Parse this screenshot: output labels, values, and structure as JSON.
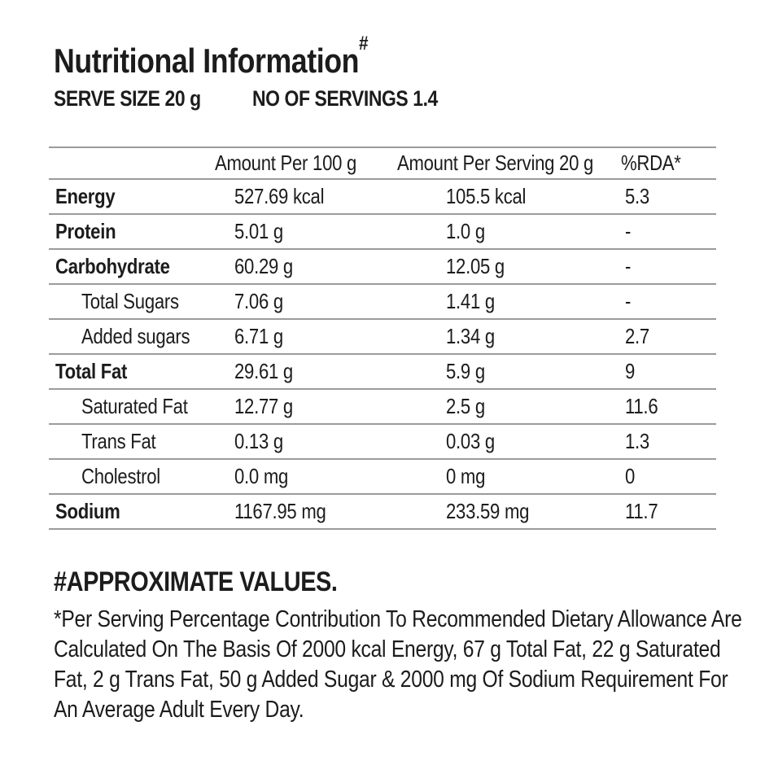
{
  "title": {
    "text": "Nutritional Information",
    "superscript": "#"
  },
  "serving_info": {
    "serve_size_label": "SERVE SIZE 20 g",
    "servings_label": "NO OF SERVINGS 1.4"
  },
  "table": {
    "columns": [
      "",
      "Amount Per 100 g",
      "Amount Per Serving 20 g",
      "%RDA*"
    ],
    "rows": [
      {
        "nutrient": "Energy",
        "per_100g": "527.69 kcal",
        "per_serving": "105.5 kcal",
        "rda": "5.3",
        "emphasis": true,
        "sub": false
      },
      {
        "nutrient": "Protein",
        "per_100g": "5.01 g",
        "per_serving": "1.0 g",
        "rda": "-",
        "emphasis": true,
        "sub": false
      },
      {
        "nutrient": "Carbohydrate",
        "per_100g": "60.29 g",
        "per_serving": "12.05 g",
        "rda": "-",
        "emphasis": true,
        "sub": false
      },
      {
        "nutrient": "Total Sugars",
        "per_100g": "7.06 g",
        "per_serving": "1.41 g",
        "rda": "-",
        "emphasis": false,
        "sub": true
      },
      {
        "nutrient": "Added sugars",
        "per_100g": "6.71 g",
        "per_serving": "1.34 g",
        "rda": "2.7",
        "emphasis": false,
        "sub": true
      },
      {
        "nutrient": "Total Fat",
        "per_100g": "29.61 g",
        "per_serving": "5.9 g",
        "rda": "9",
        "emphasis": true,
        "sub": false
      },
      {
        "nutrient": "Saturated Fat",
        "per_100g": "12.77 g",
        "per_serving": "2.5 g",
        "rda": "11.6",
        "emphasis": false,
        "sub": true
      },
      {
        "nutrient": "Trans Fat",
        "per_100g": "0.13 g",
        "per_serving": "0.03 g",
        "rda": "1.3",
        "emphasis": false,
        "sub": true
      },
      {
        "nutrient": "Cholestrol",
        "per_100g": "0.0 mg",
        "per_serving": "0 mg",
        "rda": "0",
        "emphasis": false,
        "sub": true
      },
      {
        "nutrient": "Sodium",
        "per_100g": "1167.95 mg",
        "per_serving": "233.59 mg",
        "rda": "11.7",
        "emphasis": true,
        "sub": false
      }
    ]
  },
  "footnotes": {
    "approximate_heading": "#APPROXIMATE VALUES.",
    "rda_note_lines": [
      "*Per Serving Percentage Contribution To Recommended Dietary Allowance Are",
      "Calculated On The Basis Of 2000 kcal Energy, 67 g Total Fat, 22 g Saturated",
      "Fat, 2 g Trans Fat, 50 g Added Sugar & 2000 mg Of Sodium Requirement For",
      "An Average Adult Every Day."
    ]
  },
  "colors": {
    "text": "#1c1c1c",
    "divider": "#9b9b9b",
    "background": "#ffffff"
  }
}
